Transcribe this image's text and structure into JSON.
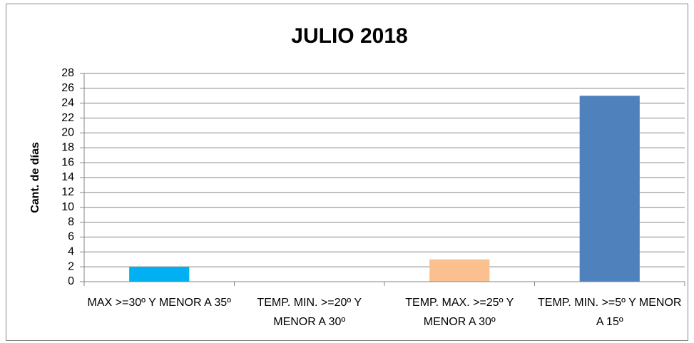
{
  "chart_data": {
    "type": "bar",
    "title": "JULIO 2018",
    "y_label": "Cant. de días",
    "categories": [
      "MAX >=30º Y MENOR A 35º",
      "TEMP. MIN. >=20º Y MENOR A 30º",
      "TEMP. MAX. >=25º Y MENOR A 30º",
      "TEMP. MIN. >=5º Y MENOR A 15º"
    ],
    "values": [
      2,
      0,
      3,
      25
    ],
    "colors": [
      "#00b0f0",
      "#c0504d",
      "#fac090",
      "#4f81bd"
    ],
    "ylim": [
      0,
      28
    ],
    "yticks": [
      0,
      2,
      4,
      6,
      8,
      10,
      12,
      14,
      16,
      18,
      20,
      22,
      24,
      26,
      28
    ],
    "grid": true
  }
}
